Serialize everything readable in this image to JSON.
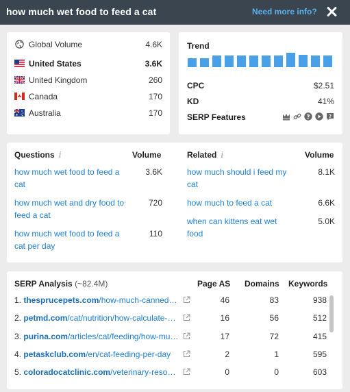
{
  "header": {
    "title": "how much wet food to feed a cat",
    "more_info": "Need more info?"
  },
  "volume": {
    "rows": [
      {
        "name": "Global Volume",
        "value": "4.6K",
        "icon": "globe-icon"
      },
      {
        "name": "United States",
        "value": "3.6K",
        "icon": "flag-us-icon"
      },
      {
        "name": "United Kingdom",
        "value": "260",
        "icon": "flag-uk-icon"
      },
      {
        "name": "Canada",
        "value": "170",
        "icon": "flag-ca-icon"
      },
      {
        "name": "Australia",
        "value": "170",
        "icon": "flag-au-icon"
      }
    ]
  },
  "trend": {
    "label": "Trend",
    "bar_levels": [
      0.6,
      0.6,
      0.75,
      0.75,
      0.75,
      0.75,
      0.75,
      0.75,
      0.95,
      0.8,
      0.75,
      0.75
    ],
    "cpc_label": "CPC",
    "cpc_value": "$2.51",
    "kd_label": "KD",
    "kd_value": "41%",
    "serp_label": "SERP Features",
    "serp_icons": [
      "crown-icon",
      "link-icon",
      "question-icon",
      "play-icon",
      "faq-icon"
    ]
  },
  "questions": {
    "header": "Questions",
    "volume_header": "Volume",
    "items": [
      {
        "text": "how much wet food to feed a cat",
        "value": "3.6K"
      },
      {
        "text": "how much wet and dry food to feed a cat",
        "value": "720"
      },
      {
        "text": "how much wet food to feed a cat per day",
        "value": "110"
      }
    ]
  },
  "related": {
    "header": "Related",
    "volume_header": "Volume",
    "items": [
      {
        "text": "how much should i feed my cat",
        "value": "8.1K"
      },
      {
        "text": "how much to feed a cat",
        "value": "6.6K"
      },
      {
        "text": "when can kittens eat wet food",
        "value": "5.0K"
      }
    ]
  },
  "serp": {
    "title": "SERP Analysis",
    "count": "(~82.4M)",
    "col_page_as": "Page AS",
    "col_domains": "Domains",
    "col_keywords": "Keywords",
    "rows": [
      {
        "idx": "1.",
        "domain": "thesprucepets.com",
        "path": "/how-much-canned-wet-food",
        "page_as": "46",
        "domains": "83",
        "keywords": "938"
      },
      {
        "idx": "2.",
        "domain": "petmd.com",
        "path": "/cat/nutrition/how-calculate-how-much",
        "page_as": "16",
        "domains": "56",
        "keywords": "512"
      },
      {
        "idx": "3.",
        "domain": "purina.com",
        "path": "/articles/cat/feeding/how-much",
        "page_as": "17",
        "domains": "72",
        "keywords": "415"
      },
      {
        "idx": "4.",
        "domain": "petaskclub.com",
        "path": "/en/cat-feeding-per-day",
        "page_as": "2",
        "domains": "1",
        "keywords": "595"
      },
      {
        "idx": "5.",
        "domain": "coloradocatclinic.com",
        "path": "/veterinary-resources",
        "page_as": "0",
        "domains": "0",
        "keywords": "603"
      }
    ]
  },
  "colors": {
    "header_bg": "#3b454f",
    "link": "#1f7fd3",
    "accent": "#5bb2ee",
    "bar": "#4aa0e6"
  }
}
